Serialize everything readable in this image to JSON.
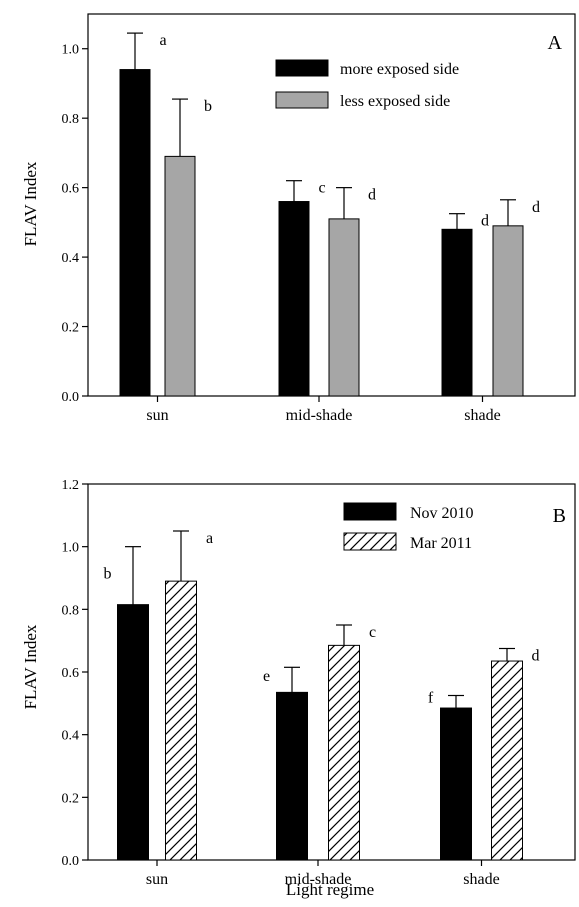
{
  "chart_data": [
    {
      "type": "bar",
      "panel_label": "A",
      "categories": [
        "sun",
        "mid-shade",
        "shade"
      ],
      "ylabel": "FLAV Index",
      "xlabel": "",
      "ylim": [
        0,
        1.1
      ],
      "yticks": [
        0.0,
        0.2,
        0.4,
        0.6,
        0.8,
        1.0
      ],
      "ytick_labels": [
        "0.0",
        "0.2",
        "0.4",
        "0.6",
        "0.8",
        "1.0"
      ],
      "grid": false,
      "legend_position": "top-right",
      "series": [
        {
          "name": "more exposed side",
          "color": "#000000",
          "pattern": "solid",
          "values": [
            0.94,
            0.56,
            0.48
          ],
          "errors": [
            0.105,
            0.06,
            0.045
          ],
          "labels": [
            "a",
            "c",
            "d"
          ]
        },
        {
          "name": "less exposed side",
          "color": "#a6a6a6",
          "pattern": "solid",
          "values": [
            0.69,
            0.51,
            0.49
          ],
          "errors": [
            0.165,
            0.09,
            0.075
          ],
          "labels": [
            "b",
            "d",
            "d"
          ]
        }
      ]
    },
    {
      "type": "bar",
      "panel_label": "B",
      "categories": [
        "sun",
        "mid-shade",
        "shade"
      ],
      "ylabel": "FLAV Index",
      "xlabel": "Light regime",
      "ylim": [
        0,
        1.2
      ],
      "yticks": [
        0.0,
        0.2,
        0.4,
        0.6,
        0.8,
        1.0,
        1.2
      ],
      "ytick_labels": [
        "0.0",
        "0.2",
        "0.4",
        "0.6",
        "0.8",
        "1.0",
        "1.2"
      ],
      "grid": false,
      "legend_position": "top-right",
      "series": [
        {
          "name": "Nov 2010",
          "color": "#000000",
          "pattern": "solid",
          "values": [
            0.815,
            0.535,
            0.485
          ],
          "errors": [
            0.185,
            0.08,
            0.04
          ],
          "labels": [
            "b",
            "e",
            "f"
          ]
        },
        {
          "name": "Mar 2011",
          "color": "#000000",
          "pattern": "hatch",
          "values": [
            0.89,
            0.685,
            0.635
          ],
          "errors": [
            0.16,
            0.065,
            0.04
          ],
          "labels": [
            "a",
            "c",
            "d"
          ]
        }
      ]
    }
  ]
}
